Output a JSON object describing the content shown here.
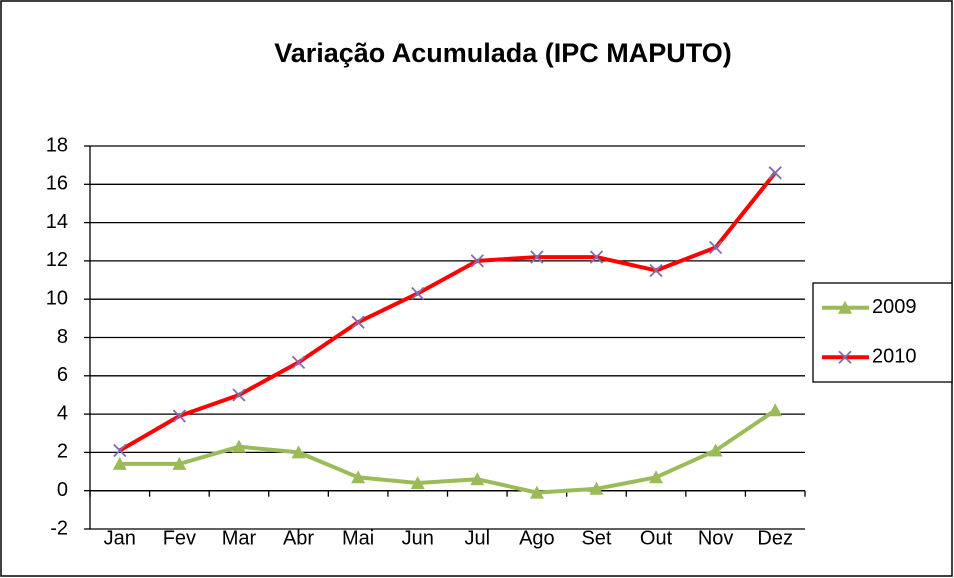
{
  "chart_data": {
    "type": "line",
    "title": "Variação Acumulada (IPC MAPUTO)",
    "categories": [
      "Jan",
      "Fev",
      "Mar",
      "Abr",
      "Mai",
      "Jun",
      "Jul",
      "Ago",
      "Set",
      "Out",
      "Nov",
      "Dez"
    ],
    "series": [
      {
        "name": "2009",
        "color": "#9bbb59",
        "marker": "triangle",
        "marker_color": "#9bbb59",
        "values": [
          1.4,
          1.4,
          2.3,
          2.0,
          0.7,
          0.4,
          0.6,
          -0.1,
          0.1,
          0.7,
          2.1,
          4.2
        ]
      },
      {
        "name": "2010",
        "color": "#ff0000",
        "marker": "x",
        "marker_color": "#7f6fb0",
        "values": [
          2.1,
          3.9,
          5.0,
          6.7,
          8.8,
          10.3,
          12.0,
          12.2,
          12.2,
          11.5,
          12.7,
          16.6
        ]
      }
    ],
    "ylim": [
      -2,
      18
    ],
    "yticks": [
      -2,
      0,
      2,
      4,
      6,
      8,
      10,
      12,
      14,
      16,
      18
    ],
    "grid": true,
    "legend": "right"
  }
}
